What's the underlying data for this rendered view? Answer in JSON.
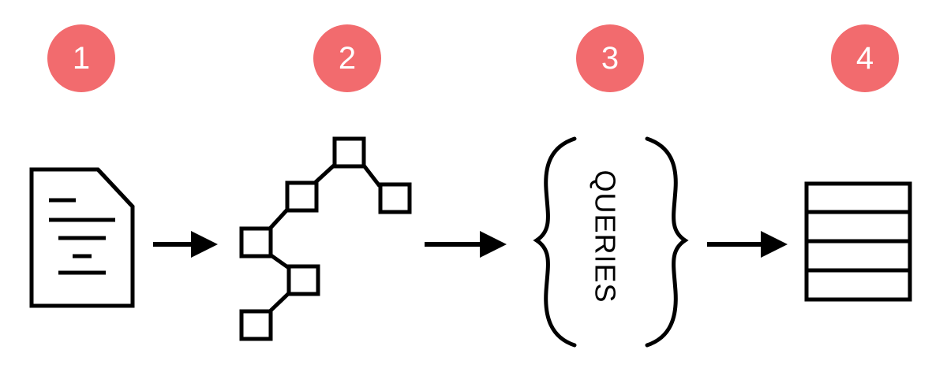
{
  "colors": {
    "badge": "#F26B6E",
    "badge_text": "#FFFFFF",
    "stroke": "#000000",
    "background": "#FFFFFF"
  },
  "steps": [
    {
      "number": "1",
      "icon": "document-icon"
    },
    {
      "number": "2",
      "icon": "tree-icon"
    },
    {
      "number": "3",
      "icon": "braces-icon",
      "label": "QUERIES"
    },
    {
      "number": "4",
      "icon": "table-icon"
    }
  ],
  "arrows": [
    {
      "from": "1",
      "to": "2",
      "icon": "arrow-right-icon"
    },
    {
      "from": "2",
      "to": "3",
      "icon": "arrow-right-icon"
    },
    {
      "from": "3",
      "to": "4",
      "icon": "arrow-right-icon"
    }
  ]
}
